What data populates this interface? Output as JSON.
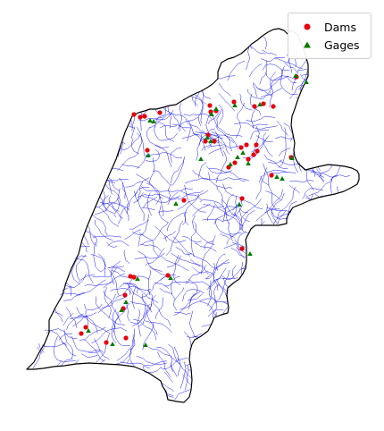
{
  "legend": {
    "items": [
      {
        "label": "Dams",
        "marker": "circle",
        "color": "#e8000b"
      },
      {
        "label": "Gages",
        "marker": "triangle",
        "color": "#007a00"
      }
    ]
  },
  "colors": {
    "boundary": "#000000",
    "rivers": "#0000ee",
    "background": "#ffffff"
  }
}
